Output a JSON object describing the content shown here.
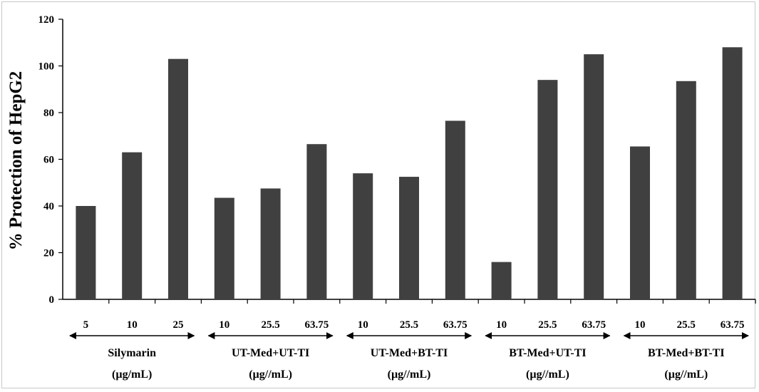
{
  "chart_data": {
    "type": "bar",
    "ylabel": "% Protection of HepG2",
    "xlabel": "",
    "ylim": [
      0,
      120
    ],
    "yticks": [
      0,
      20,
      40,
      60,
      80,
      100,
      120
    ],
    "grid": false,
    "legend": "none",
    "bar_color": "#404040",
    "groups": [
      {
        "name": "Silymarin",
        "unit": "(µg/mL)",
        "categories": [
          "5",
          "10",
          "25"
        ],
        "values": [
          40,
          63,
          103
        ]
      },
      {
        "name": "UT-Med+UT-TI",
        "unit": "(µg//mL)",
        "categories": [
          "10",
          "25.5",
          "63.75"
        ],
        "values": [
          43.5,
          47.5,
          66.5
        ]
      },
      {
        "name": "UT-Med+BT-TI",
        "unit": "(µg//mL)",
        "categories": [
          "10",
          "25.5",
          "63.75"
        ],
        "values": [
          54,
          52.5,
          76.5
        ]
      },
      {
        "name": "BT-Med+UT-TI",
        "unit": "(µg//mL)",
        "categories": [
          "10",
          "25.5",
          "63.75"
        ],
        "values": [
          16,
          94,
          105
        ]
      },
      {
        "name": "BT-Med+BT-TI",
        "unit": "(µg//mL)",
        "categories": [
          "10",
          "25.5",
          "63.75"
        ],
        "values": [
          65.5,
          93.5,
          108
        ]
      }
    ]
  }
}
